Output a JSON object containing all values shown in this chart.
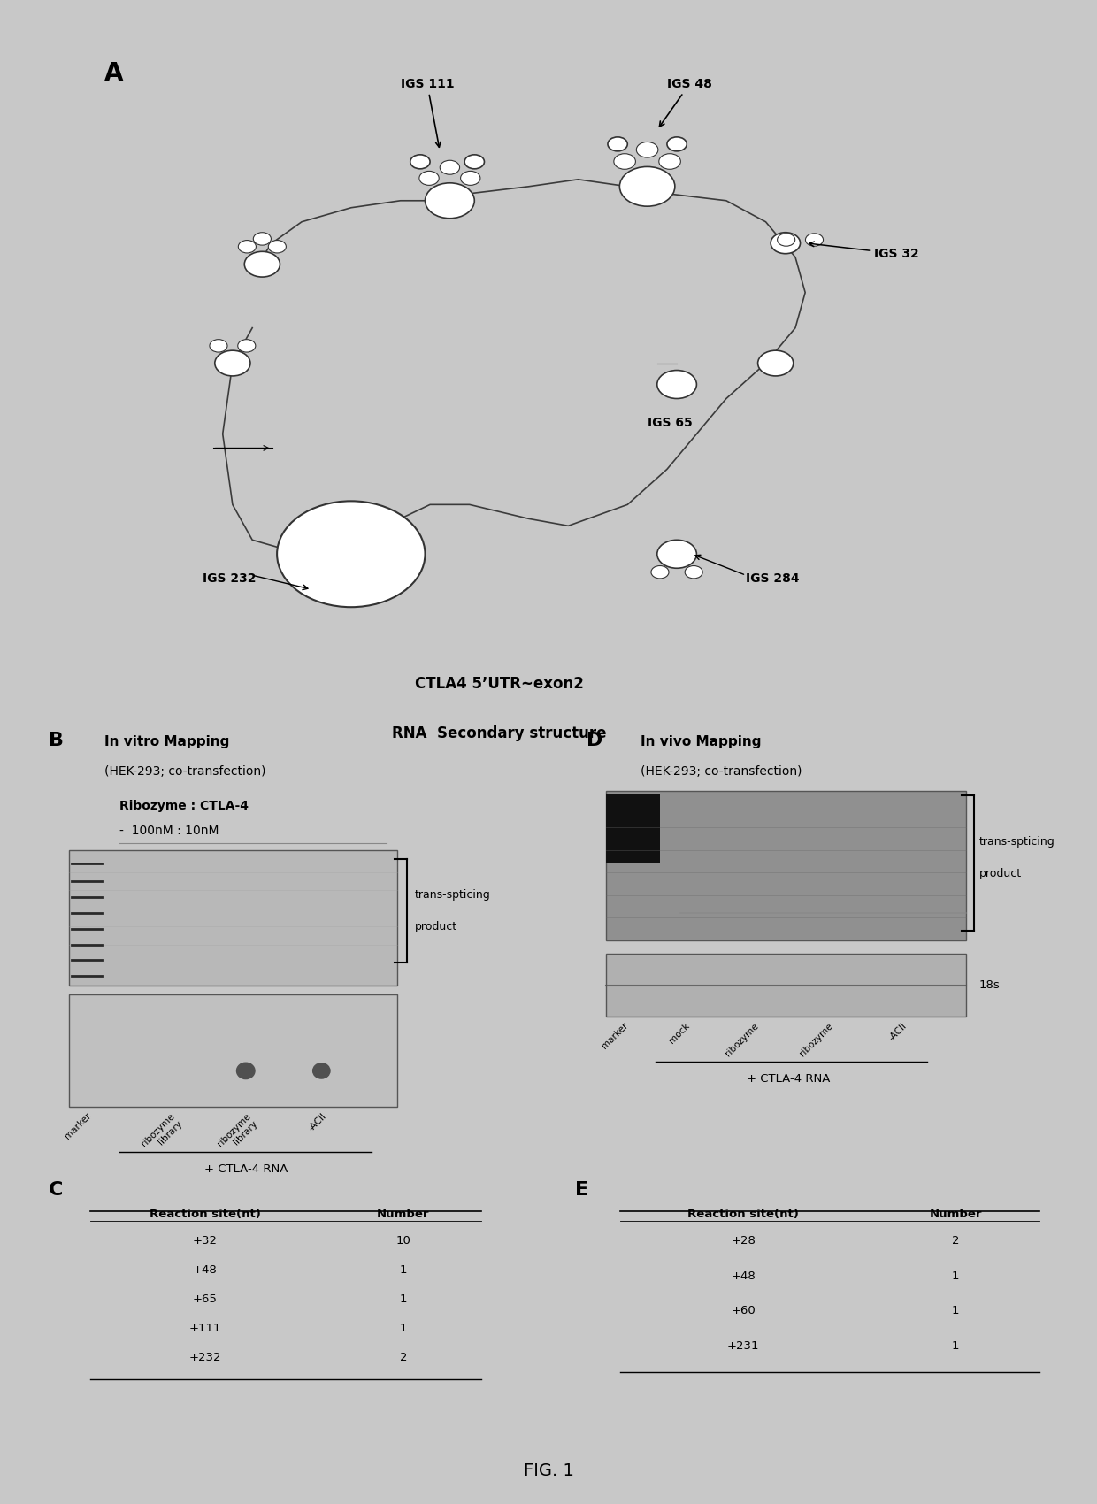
{
  "title": "FIG. 1",
  "panel_A_label": "A",
  "panel_B_label": "B",
  "panel_C_label": "C",
  "panel_D_label": "D",
  "panel_E_label": "E",
  "panel_A_subtitle1": "CTLA4 5’UTR~exon2",
  "panel_A_subtitle2": "RNA  Secondary structure",
  "panel_A_igs_labels": [
    "IGS 111",
    "IGS 48",
    "IGS 32",
    "IGS 65",
    "IGS 232",
    "IGS 284"
  ],
  "panel_B_title1": "In vitro Mapping",
  "panel_B_title2": "(HEK-293; co-transfection)",
  "panel_B_subtitle1": "Ribozyme : CTLA-4",
  "panel_B_subtitle2": "-  100nM : 10nM",
  "panel_B_bracket_label1": "trans-spticing",
  "panel_B_bracket_label2": "product",
  "panel_B_xlabel": "+ CTLA-4 RNA",
  "panel_B_lane_labels": [
    "marker",
    "ribozyme\nlibrary",
    "ribozyme\nlibrary",
    "-ACII"
  ],
  "panel_D_title1": "In vivo Mapping",
  "panel_D_title2": "(HEK-293; co-transfection)",
  "panel_D_bracket_label1": "trans-spticing",
  "panel_D_bracket_label2": "product",
  "panel_D_18s": "18s",
  "panel_D_xlabel": "+ CTLA-4 RNA",
  "panel_D_lane_labels": [
    "marker",
    "mock",
    "ribozyme",
    "ribozyme",
    "-ACII"
  ],
  "panel_C_headers": [
    "Reaction site(nt)",
    "Number"
  ],
  "panel_C_rows": [
    [
      "+32",
      "10"
    ],
    [
      "+48",
      "1"
    ],
    [
      "+65",
      "1"
    ],
    [
      "+111",
      "1"
    ],
    [
      "+232",
      "2"
    ]
  ],
  "panel_E_headers": [
    "Reaction site(nt)",
    "Number"
  ],
  "panel_E_rows": [
    [
      "+28",
      "2"
    ],
    [
      "+48",
      "1"
    ],
    [
      "+60",
      "1"
    ],
    [
      "+231",
      "1"
    ]
  ],
  "bg_color": "#c8c8c8"
}
